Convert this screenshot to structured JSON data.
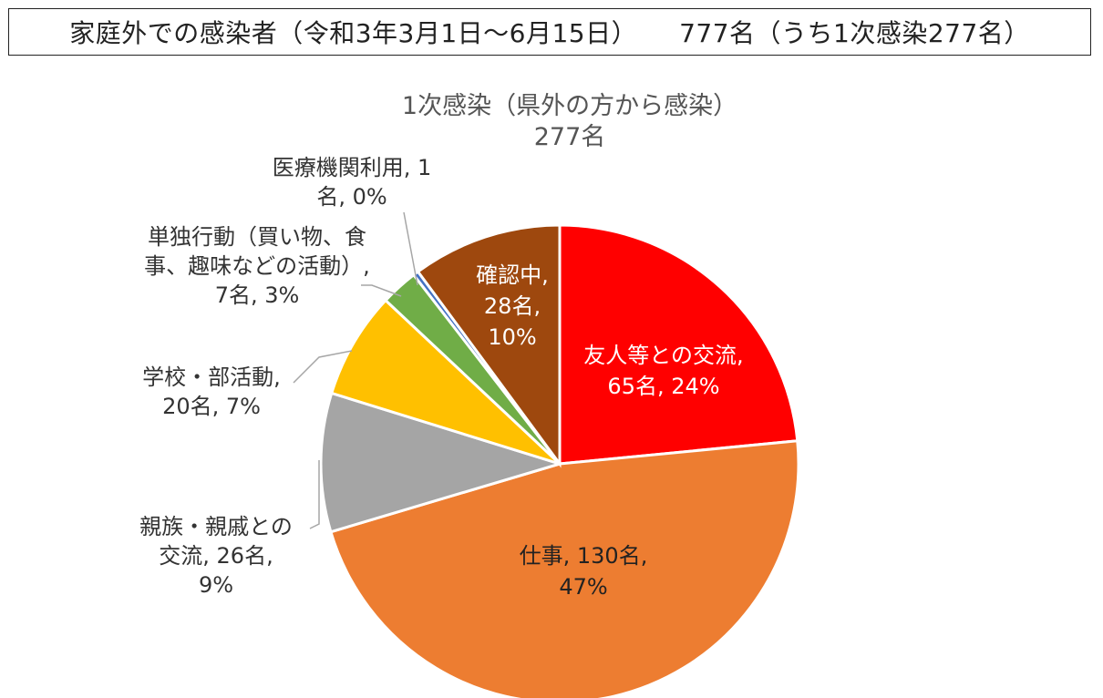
{
  "header": {
    "main": "家庭外での感染者（令和3年3月1日～6月15日）",
    "total": "777名（うち1次感染277名）"
  },
  "chart_data": {
    "type": "pie",
    "title": "1次感染（県外の方から感染）",
    "subtitle": "277名",
    "slices": [
      {
        "name": "友人等との交流",
        "value": 65,
        "percent": 24,
        "color": "#ff0000",
        "label_lines": [
          "友人等との交流,",
          "65名, 24%"
        ]
      },
      {
        "name": "仕事",
        "value": 130,
        "percent": 47,
        "color": "#ed7d31",
        "label_lines": [
          "仕事, 130名,",
          "47%"
        ]
      },
      {
        "name": "親族・親戚との交流",
        "value": 26,
        "percent": 9,
        "color": "#a5a5a5",
        "label_lines": [
          "親族・親戚との",
          "交流, 26名,",
          "9%"
        ]
      },
      {
        "name": "学校・部活動",
        "value": 20,
        "percent": 7,
        "color": "#ffc000",
        "label_lines": [
          "学校・部活動,",
          "20名, 7%"
        ]
      },
      {
        "name": "単独行動（買い物、食事、趣味などの活動）",
        "value": 7,
        "percent": 3,
        "color": "#70ad47",
        "label_lines": [
          "単独行動（買い物、食",
          "事、趣味などの活動）,",
          "7名, 3%"
        ]
      },
      {
        "name": "医療機関利用",
        "value": 1,
        "percent": 0,
        "color": "#4472c4",
        "label_lines": [
          "医療機関利用, 1",
          "名, 0%"
        ]
      },
      {
        "name": "確認中",
        "value": 28,
        "percent": 10,
        "color": "#9e480e",
        "label_lines": [
          "確認中,",
          "28名,",
          "10%"
        ]
      }
    ]
  }
}
